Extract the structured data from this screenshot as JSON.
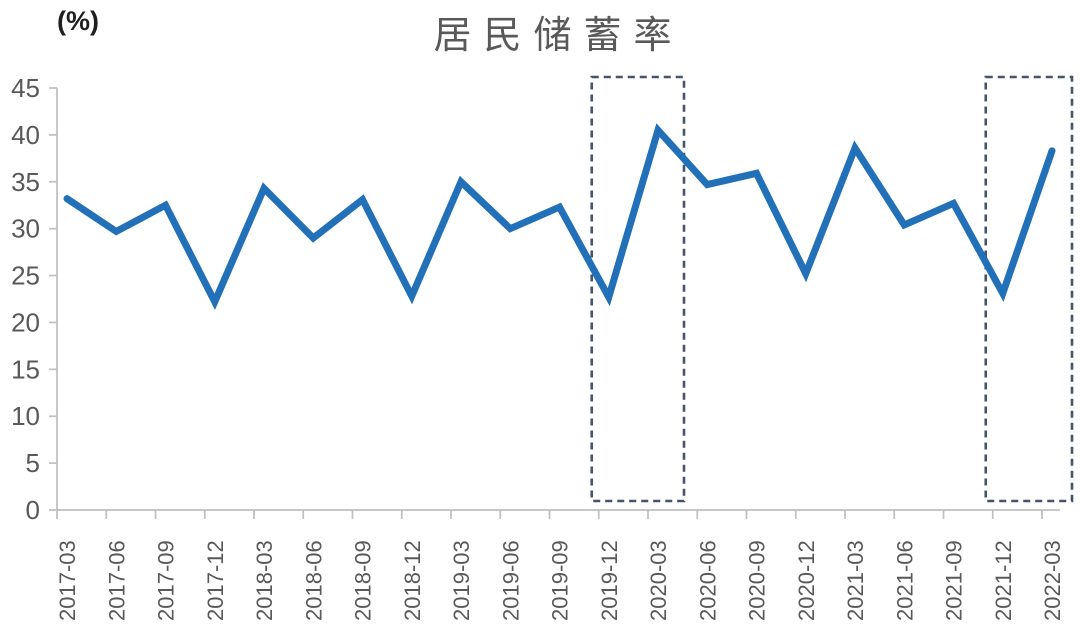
{
  "page": {
    "background_color": "#FFFFFF"
  },
  "chart_data": {
    "type": "line",
    "title": "居民储蓄率",
    "unit_label": "(%)",
    "xlabel": "",
    "ylabel": "",
    "categories": [
      "2017-03",
      "2017-06",
      "2017-09",
      "2017-12",
      "2018-03",
      "2018-06",
      "2018-09",
      "2018-12",
      "2019-03",
      "2019-06",
      "2019-09",
      "2019-12",
      "2020-03",
      "2020-06",
      "2020-09",
      "2020-12",
      "2021-03",
      "2021-06",
      "2021-09",
      "2021-12",
      "2022-03"
    ],
    "series": [
      {
        "name": "居民储蓄率",
        "color": "#2170B8",
        "values": [
          33.2,
          29.7,
          32.5,
          22.2,
          34.3,
          29.0,
          33.1,
          22.8,
          35.0,
          30.0,
          32.3,
          22.7,
          40.5,
          34.7,
          35.9,
          25.2,
          38.6,
          30.4,
          32.7,
          23.1,
          38.3
        ]
      }
    ],
    "ylim": [
      0,
      45
    ],
    "yticks": [
      0,
      5,
      10,
      15,
      20,
      25,
      30,
      35,
      40,
      45
    ],
    "grid": false,
    "legend_position": "none",
    "x_tick_label_rotation": 90,
    "highlight_boxes": [
      {
        "from": "2019-12",
        "to": "2020-03",
        "style": "dashed"
      },
      {
        "from": "2021-12",
        "to": "2022-03",
        "style": "dashed"
      }
    ],
    "style": {
      "line_color": "#2170B8",
      "highlight_box_color": "#44546A",
      "axis_color": "#BFBFBF",
      "tick_label_color": "#595959",
      "title_color": "#595959",
      "unit_label_color": "#1F1F1F"
    }
  }
}
